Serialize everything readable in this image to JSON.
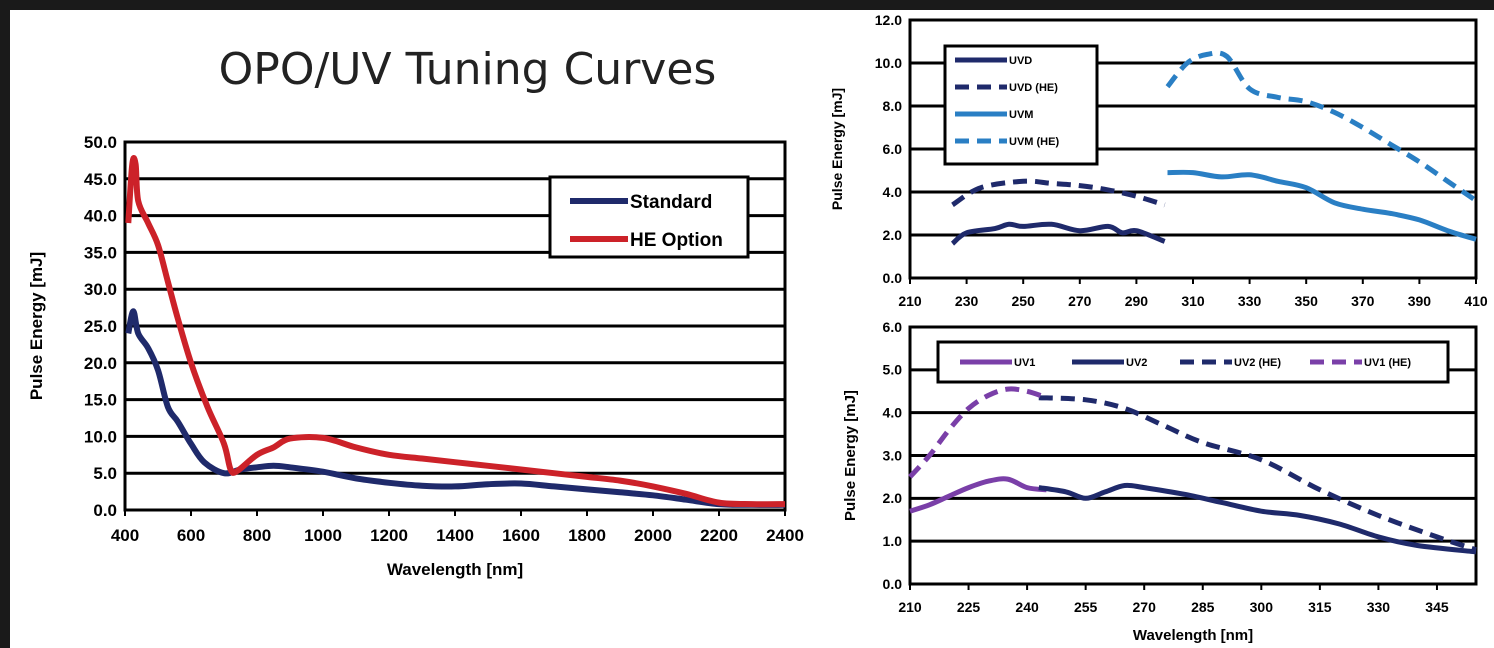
{
  "title": "OPO/UV Tuning Curves",
  "colors": {
    "standard": "#1f2a6b",
    "he": "#cc2229",
    "uvm": "#2a7fc4",
    "uv1": "#7a3fa8"
  },
  "chart_data": [
    {
      "type": "line",
      "xlabel": "Wavelength  [nm]",
      "ylabel": "Pulse Energy  [mJ]",
      "xlim": [
        400,
        2400
      ],
      "ylim": [
        0,
        50
      ],
      "xticks": [
        "400",
        "600",
        "800",
        "1000",
        "1200",
        "1400",
        "1600",
        "1800",
        "2000",
        "2200",
        "2400"
      ],
      "yticks": [
        "0.0",
        "5.0",
        "10.0",
        "15.0",
        "20.0",
        "25.0",
        "30.0",
        "35.0",
        "40.0",
        "45.0",
        "50.0"
      ],
      "grid": "horizontal",
      "legend_position": "top-right",
      "series": [
        {
          "name": "Standard",
          "style": "solid",
          "color": "#1f2a6b",
          "points": [
            [
              410,
              24
            ],
            [
              425,
              27
            ],
            [
              440,
              24
            ],
            [
              470,
              22
            ],
            [
              500,
              19
            ],
            [
              530,
              14
            ],
            [
              560,
              12
            ],
            [
              600,
              9
            ],
            [
              640,
              6.5
            ],
            [
              700,
              5
            ],
            [
              750,
              5.5
            ],
            [
              800,
              5.8
            ],
            [
              850,
              6
            ],
            [
              900,
              5.8
            ],
            [
              1000,
              5.2
            ],
            [
              1100,
              4.3
            ],
            [
              1200,
              3.7
            ],
            [
              1300,
              3.3
            ],
            [
              1400,
              3.2
            ],
            [
              1500,
              3.5
            ],
            [
              1600,
              3.6
            ],
            [
              1700,
              3.2
            ],
            [
              1800,
              2.8
            ],
            [
              1900,
              2.4
            ],
            [
              2000,
              2.0
            ],
            [
              2100,
              1.4
            ],
            [
              2200,
              0.8
            ],
            [
              2300,
              0.7
            ],
            [
              2400,
              0.7
            ]
          ]
        },
        {
          "name": "HE Option",
          "style": "solid",
          "color": "#cc2229",
          "points": [
            [
              410,
              39
            ],
            [
              422,
              47
            ],
            [
              432,
              47
            ],
            [
              440,
              42
            ],
            [
              470,
              39
            ],
            [
              500,
              36
            ],
            [
              530,
              31
            ],
            [
              560,
              26
            ],
            [
              600,
              20
            ],
            [
              650,
              14
            ],
            [
              700,
              9
            ],
            [
              720,
              5.5
            ],
            [
              740,
              5.3
            ],
            [
              800,
              7.5
            ],
            [
              850,
              8.5
            ],
            [
              900,
              9.7
            ],
            [
              1000,
              9.8
            ],
            [
              1100,
              8.5
            ],
            [
              1200,
              7.5
            ],
            [
              1300,
              7
            ],
            [
              1400,
              6.5
            ],
            [
              1500,
              6
            ],
            [
              1600,
              5.5
            ],
            [
              1700,
              5
            ],
            [
              1800,
              4.5
            ],
            [
              1900,
              4
            ],
            [
              2000,
              3.2
            ],
            [
              2100,
              2.2
            ],
            [
              2200,
              1
            ],
            [
              2300,
              0.8
            ],
            [
              2400,
              0.8
            ]
          ]
        }
      ]
    },
    {
      "type": "line",
      "xlabel": "",
      "ylabel": "Pulse Energy  [mJ]",
      "xlim": [
        210,
        410
      ],
      "ylim": [
        0,
        12
      ],
      "xticks": [
        "210",
        "230",
        "250",
        "270",
        "290",
        "310",
        "330",
        "350",
        "370",
        "390",
        "410"
      ],
      "yticks": [
        "0.0",
        "2.0",
        "4.0",
        "6.0",
        "8.0",
        "10.0",
        "12.0"
      ],
      "grid": "horizontal",
      "legend_position": "top-left",
      "series": [
        {
          "name": "UVD",
          "style": "solid",
          "color": "#1f2a6b",
          "points": [
            [
              225,
              1.6
            ],
            [
              230,
              2.1
            ],
            [
              240,
              2.3
            ],
            [
              245,
              2.5
            ],
            [
              250,
              2.4
            ],
            [
              260,
              2.5
            ],
            [
              270,
              2.2
            ],
            [
              280,
              2.4
            ],
            [
              285,
              2.1
            ],
            [
              290,
              2.2
            ],
            [
              300,
              1.7
            ]
          ]
        },
        {
          "name": "UVD (HE)",
          "style": "dashed",
          "color": "#1f2a6b",
          "points": [
            [
              225,
              3.4
            ],
            [
              235,
              4.2
            ],
            [
              250,
              4.5
            ],
            [
              260,
              4.4
            ],
            [
              270,
              4.3
            ],
            [
              280,
              4.1
            ],
            [
              290,
              3.8
            ],
            [
              300,
              3.4
            ]
          ]
        },
        {
          "name": "UVM",
          "style": "solid",
          "color": "#2a7fc4",
          "points": [
            [
              301,
              4.9
            ],
            [
              310,
              4.9
            ],
            [
              320,
              4.7
            ],
            [
              330,
              4.8
            ],
            [
              340,
              4.5
            ],
            [
              350,
              4.2
            ],
            [
              360,
              3.5
            ],
            [
              370,
              3.2
            ],
            [
              380,
              3.0
            ],
            [
              390,
              2.7
            ],
            [
              400,
              2.2
            ],
            [
              410,
              1.8
            ]
          ]
        },
        {
          "name": "UVM (HE)",
          "style": "dashed",
          "color": "#2a7fc4",
          "points": [
            [
              301,
              8.9
            ],
            [
              308,
              10.0
            ],
            [
              315,
              10.4
            ],
            [
              322,
              10.3
            ],
            [
              330,
              8.8
            ],
            [
              340,
              8.4
            ],
            [
              350,
              8.2
            ],
            [
              360,
              7.7
            ],
            [
              370,
              7.0
            ],
            [
              380,
              6.2
            ],
            [
              390,
              5.4
            ],
            [
              400,
              4.5
            ],
            [
              410,
              3.6
            ]
          ]
        }
      ]
    },
    {
      "type": "line",
      "xlabel": "Wavelength  [nm]",
      "ylabel": "Pulse Energy  [mJ]",
      "xlim": [
        210,
        355
      ],
      "ylim": [
        0,
        6
      ],
      "xticks": [
        "210",
        "225",
        "240",
        "255",
        "270",
        "285",
        "300",
        "315",
        "330",
        "345"
      ],
      "yticks": [
        "0.0",
        "1.0",
        "2.0",
        "3.0",
        "4.0",
        "5.0",
        "6.0"
      ],
      "grid": "horizontal",
      "legend_position": "top",
      "series": [
        {
          "name": "UV1",
          "style": "solid",
          "color": "#7a3fa8",
          "points": [
            [
              210,
              1.7
            ],
            [
              215,
              1.85
            ],
            [
              220,
              2.05
            ],
            [
              225,
              2.25
            ],
            [
              230,
              2.4
            ],
            [
              235,
              2.45
            ],
            [
              240,
              2.25
            ],
            [
              245,
              2.2
            ]
          ]
        },
        {
          "name": "UV2",
          "style": "solid",
          "color": "#1f2a6b",
          "points": [
            [
              243,
              2.25
            ],
            [
              250,
              2.15
            ],
            [
              255,
              2.0
            ],
            [
              260,
              2.15
            ],
            [
              265,
              2.3
            ],
            [
              270,
              2.25
            ],
            [
              280,
              2.1
            ],
            [
              290,
              1.9
            ],
            [
              300,
              1.7
            ],
            [
              310,
              1.6
            ],
            [
              320,
              1.4
            ],
            [
              330,
              1.1
            ],
            [
              340,
              0.9
            ],
            [
              355,
              0.75
            ]
          ]
        },
        {
          "name": "UV2 (HE)",
          "style": "dashed",
          "color": "#1f2a6b",
          "points": [
            [
              243,
              4.35
            ],
            [
              255,
              4.3
            ],
            [
              265,
              4.1
            ],
            [
              275,
              3.7
            ],
            [
              285,
              3.3
            ],
            [
              300,
              2.9
            ],
            [
              315,
              2.2
            ],
            [
              330,
              1.6
            ],
            [
              345,
              1.1
            ],
            [
              355,
              0.8
            ]
          ]
        },
        {
          "name": "UV1 (HE)",
          "style": "dashed",
          "color": "#7a3fa8",
          "points": [
            [
              210,
              2.5
            ],
            [
              215,
              3.0
            ],
            [
              220,
              3.6
            ],
            [
              225,
              4.1
            ],
            [
              230,
              4.4
            ],
            [
              235,
              4.55
            ],
            [
              240,
              4.5
            ],
            [
              245,
              4.35
            ]
          ]
        }
      ]
    }
  ]
}
